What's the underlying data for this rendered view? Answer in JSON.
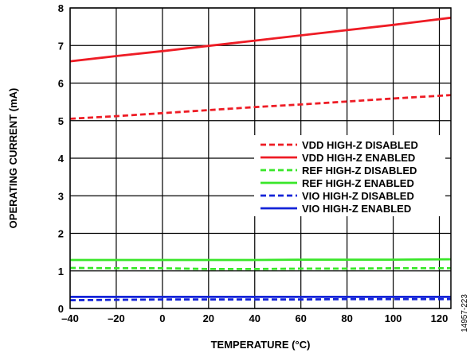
{
  "figure_id": "14957-223",
  "chart_data": {
    "type": "line",
    "title": "",
    "xlabel": "TEMPERATURE (°C)",
    "ylabel": "OPERATING CURRENT (mA)",
    "xlim": [
      -40,
      125
    ],
    "ylim": [
      0,
      8
    ],
    "xticks": [
      -40,
      -20,
      0,
      20,
      40,
      60,
      80,
      100,
      120
    ],
    "xtick_labels": [
      "–40",
      "–20",
      "0",
      "20",
      "40",
      "60",
      "80",
      "100",
      "120"
    ],
    "yticks": [
      0,
      1,
      2,
      3,
      4,
      5,
      6,
      7,
      8
    ],
    "ytick_labels": [
      "0",
      "1",
      "2",
      "3",
      "4",
      "5",
      "6",
      "7",
      "8"
    ],
    "grid": true,
    "legend_position": "right-middle",
    "series": [
      {
        "name": "VDD HIGH-Z DISABLED",
        "color": "#ee1c25",
        "style": "dashed",
        "x": [
          -40,
          -20,
          0,
          20,
          40,
          60,
          80,
          100,
          125
        ],
        "y": [
          5.05,
          5.12,
          5.2,
          5.28,
          5.36,
          5.43,
          5.51,
          5.59,
          5.68
        ]
      },
      {
        "name": "VDD HIGH-Z ENABLED",
        "color": "#ee1c25",
        "style": "solid",
        "x": [
          -40,
          -20,
          0,
          20,
          40,
          60,
          80,
          100,
          125
        ],
        "y": [
          6.58,
          6.72,
          6.85,
          6.99,
          7.13,
          7.27,
          7.41,
          7.55,
          7.74
        ]
      },
      {
        "name": "REF HIGH-Z DISABLED",
        "color": "#39e629",
        "style": "dashed",
        "x": [
          -40,
          -20,
          0,
          20,
          40,
          60,
          80,
          100,
          125
        ],
        "y": [
          1.08,
          1.07,
          1.07,
          1.05,
          1.05,
          1.06,
          1.06,
          1.07,
          1.07
        ]
      },
      {
        "name": "REF HIGH-Z ENABLED",
        "color": "#39e629",
        "style": "solid",
        "x": [
          -40,
          -20,
          0,
          20,
          40,
          60,
          80,
          100,
          125
        ],
        "y": [
          1.29,
          1.29,
          1.29,
          1.29,
          1.29,
          1.3,
          1.3,
          1.3,
          1.31
        ]
      },
      {
        "name": "VIO HIGH-Z DISABLED",
        "color": "#1424d8",
        "style": "dashed",
        "x": [
          -40,
          -20,
          0,
          20,
          40,
          60,
          80,
          100,
          125
        ],
        "y": [
          0.22,
          0.23,
          0.24,
          0.24,
          0.24,
          0.24,
          0.25,
          0.25,
          0.25
        ]
      },
      {
        "name": "VIO HIGH-Z ENABLED",
        "color": "#1424d8",
        "style": "solid",
        "x": [
          -40,
          -20,
          0,
          20,
          40,
          60,
          80,
          100,
          125
        ],
        "y": [
          0.31,
          0.31,
          0.31,
          0.31,
          0.31,
          0.31,
          0.31,
          0.31,
          0.31
        ]
      }
    ]
  }
}
